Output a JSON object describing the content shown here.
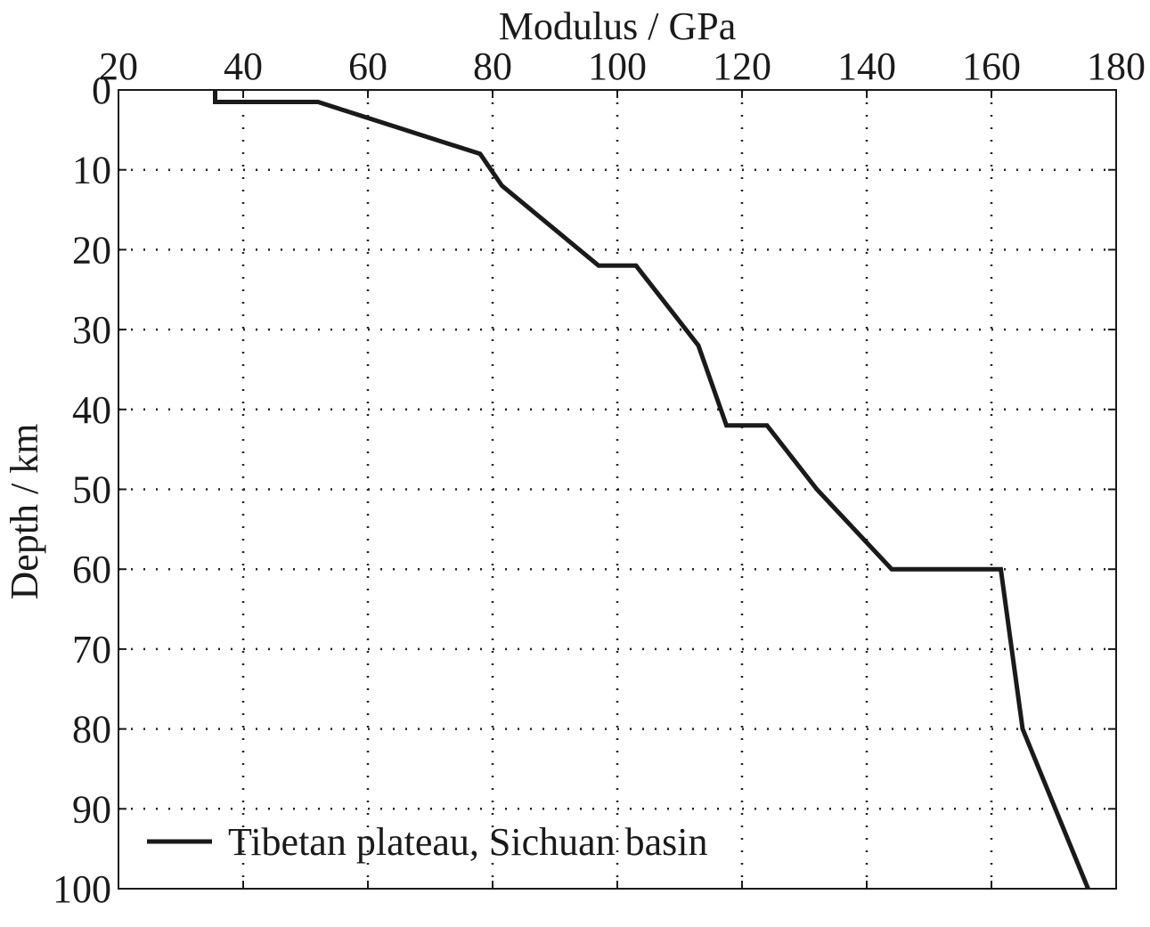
{
  "chart_data": {
    "type": "line",
    "title": "",
    "xlabel": "Modulus / GPa",
    "ylabel": "Depth / km",
    "xaxis_position": "top",
    "yaxis_inverted": true,
    "xlim": [
      20,
      180
    ],
    "ylim": [
      0,
      100
    ],
    "xticks": [
      20,
      40,
      60,
      80,
      100,
      120,
      140,
      160,
      180
    ],
    "xtick_labels": [
      "20",
      "40",
      "60",
      "80",
      "100",
      "120",
      "140",
      "160",
      "180"
    ],
    "yticks": [
      0,
      10,
      20,
      30,
      40,
      50,
      60,
      70,
      80,
      90,
      100
    ],
    "ytick_labels": [
      "0",
      "10",
      "20",
      "30",
      "40",
      "50",
      "60",
      "70",
      "80",
      "90",
      "100"
    ],
    "grid": true,
    "grid_style": "dotted",
    "legend_position": "bottom-left",
    "series": [
      {
        "name": "Tibetan plateau, Sichuan basin",
        "color": "#1a1a1a",
        "points": [
          {
            "modulus": 35.5,
            "depth": 0
          },
          {
            "modulus": 35.5,
            "depth": 1.5
          },
          {
            "modulus": 52,
            "depth": 1.5
          },
          {
            "modulus": 78,
            "depth": 8
          },
          {
            "modulus": 81.5,
            "depth": 12
          },
          {
            "modulus": 97,
            "depth": 22
          },
          {
            "modulus": 103,
            "depth": 22
          },
          {
            "modulus": 113,
            "depth": 32
          },
          {
            "modulus": 117.5,
            "depth": 42
          },
          {
            "modulus": 124,
            "depth": 42
          },
          {
            "modulus": 132,
            "depth": 50
          },
          {
            "modulus": 144,
            "depth": 60
          },
          {
            "modulus": 161.5,
            "depth": 60
          },
          {
            "modulus": 165,
            "depth": 80
          },
          {
            "modulus": 175.5,
            "depth": 100
          }
        ]
      }
    ]
  }
}
